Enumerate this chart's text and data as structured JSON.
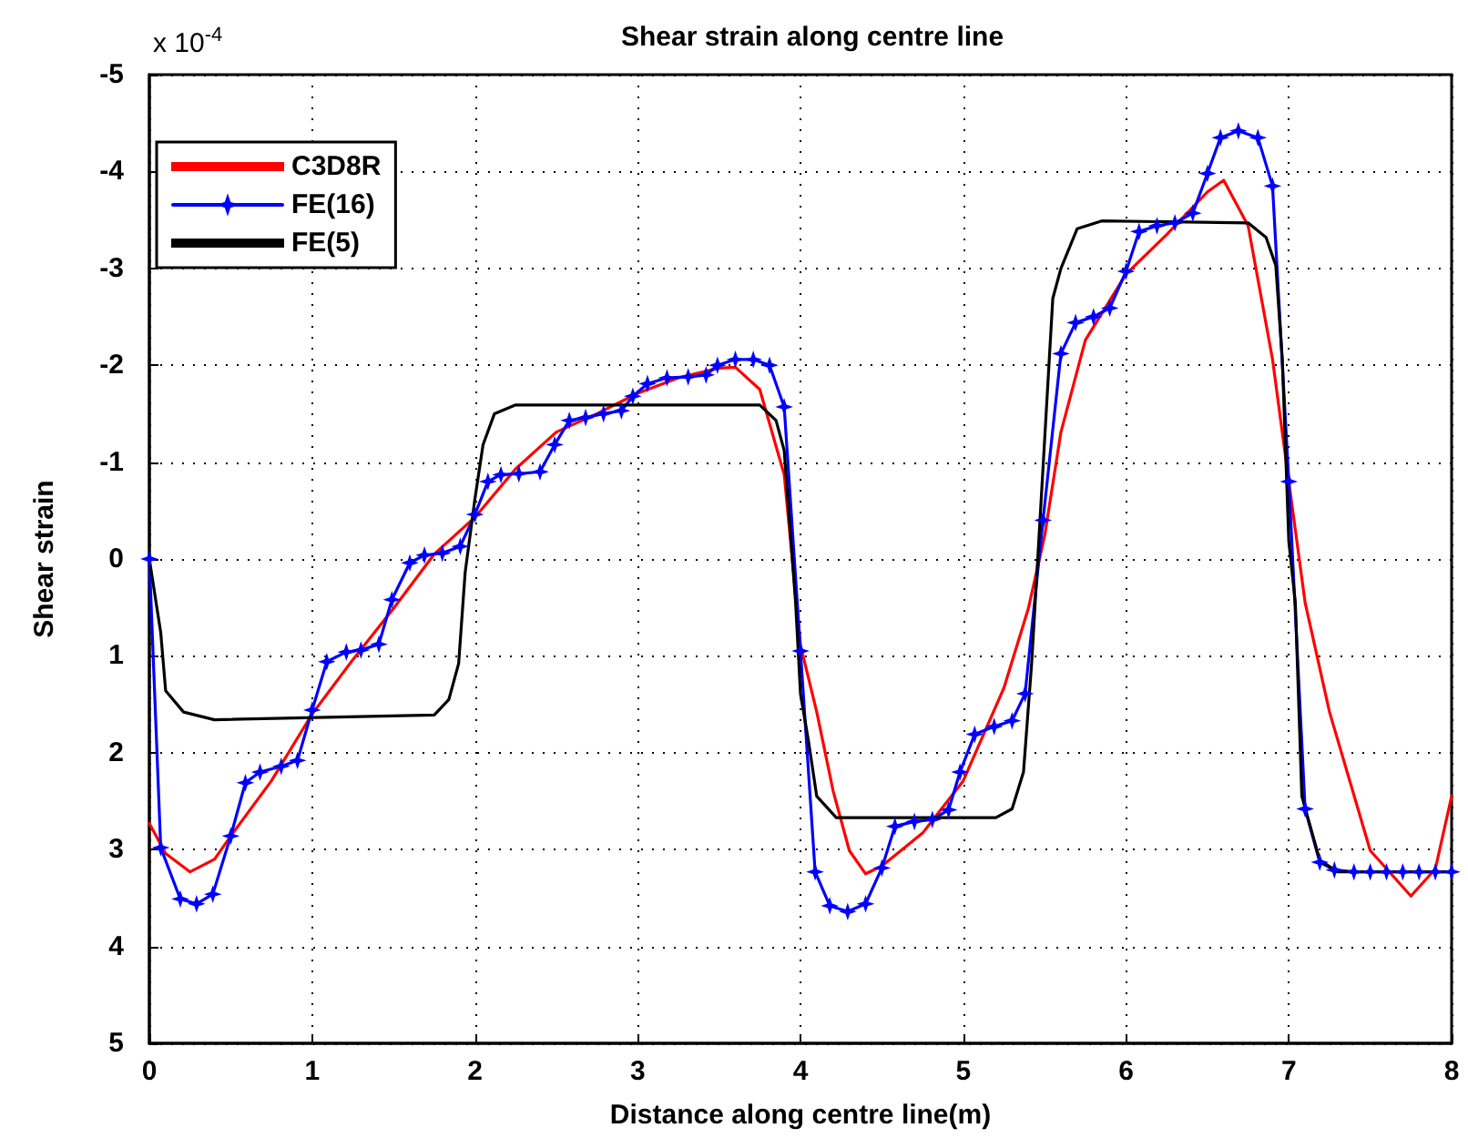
{
  "chart_data": {
    "type": "line",
    "title": "Shear strain along centre line",
    "xlabel": "Distance along centre line(m)",
    "ylabel": "Shear strain",
    "annotations": [
      "x 10$^{-4}$"
    ],
    "xlim": [
      0,
      8
    ],
    "xticks": [
      0,
      1,
      2,
      3,
      4,
      5,
      6,
      7,
      8
    ],
    "ylim": [
      5,
      -5
    ],
    "yticks": [
      -5,
      -4,
      -3,
      -2,
      -1,
      0,
      1,
      2,
      3,
      4,
      5
    ],
    "grid": true,
    "legend": "top left",
    "series": [
      {
        "name": "C3D8R",
        "color": "#ff0000",
        "marker": "none",
        "x": [
          0,
          0.1,
          0.25,
          0.4,
          0.5,
          0.75,
          1,
          1.25,
          1.5,
          1.75,
          2,
          2.25,
          2.5,
          2.75,
          3,
          3.25,
          3.5,
          3.6,
          3.75,
          3.9,
          4,
          4.1,
          4.2,
          4.3,
          4.4,
          4.5,
          4.75,
          5,
          5.25,
          5.4,
          5.5,
          5.6,
          5.75,
          6,
          6.25,
          6.5,
          6.6,
          6.75,
          6.9,
          7,
          7.1,
          7.25,
          7.5,
          7.75,
          7.9,
          8
        ],
        "values": [
          2.73,
          3.04,
          3.23,
          3.1,
          2.86,
          2.29,
          1.6,
          1.04,
          0.51,
          -0.05,
          -0.43,
          -0.93,
          -1.31,
          -1.5,
          -1.71,
          -1.87,
          -1.97,
          -1.98,
          -1.75,
          -0.87,
          0.89,
          1.58,
          2.39,
          3.01,
          3.25,
          3.17,
          2.83,
          2.29,
          1.33,
          0.51,
          -0.24,
          -1.31,
          -2.26,
          -2.94,
          -3.35,
          -3.79,
          -3.91,
          -3.44,
          -2.06,
          -0.8,
          0.45,
          1.58,
          3.01,
          3.48,
          3.2,
          2.45
        ]
      },
      {
        "name": "FE(16)",
        "color": "#0000ff",
        "marker": "star",
        "x": [
          0,
          0.07,
          0.19,
          0.29,
          0.39,
          0.5,
          0.59,
          0.68,
          0.81,
          0.91,
          1.0,
          1.09,
          1.21,
          1.3,
          1.41,
          1.49,
          1.6,
          1.69,
          1.8,
          1.91,
          2.0,
          2.08,
          2.16,
          2.27,
          2.4,
          2.49,
          2.58,
          2.68,
          2.79,
          2.9,
          2.97,
          3.06,
          3.18,
          3.31,
          3.42,
          3.49,
          3.6,
          3.71,
          3.81,
          3.9,
          4.0,
          4.09,
          4.18,
          4.29,
          4.4,
          4.5,
          4.58,
          4.7,
          4.81,
          4.91,
          4.98,
          5.07,
          5.19,
          5.3,
          5.38,
          5.49,
          5.6,
          5.69,
          5.8,
          5.9,
          6.0,
          6.08,
          6.19,
          6.3,
          6.41,
          6.5,
          6.58,
          6.69,
          6.81,
          6.9,
          7.0,
          7.1,
          7.19,
          7.28,
          7.4,
          7.5,
          7.6,
          7.7,
          7.8,
          7.9,
          8.0
        ],
        "values": [
          0,
          2.98,
          3.51,
          3.56,
          3.46,
          2.86,
          2.31,
          2.2,
          2.14,
          2.08,
          1.56,
          1.06,
          0.96,
          0.94,
          0.88,
          0.42,
          0.04,
          -0.04,
          -0.06,
          -0.13,
          -0.46,
          -0.8,
          -0.87,
          -0.88,
          -0.9,
          -1.18,
          -1.43,
          -1.46,
          -1.5,
          -1.53,
          -1.68,
          -1.81,
          -1.87,
          -1.88,
          -1.9,
          -2.0,
          -2.06,
          -2.06,
          -2.0,
          -1.57,
          0.95,
          3.23,
          3.58,
          3.64,
          3.56,
          3.19,
          2.76,
          2.71,
          2.69,
          2.59,
          2.2,
          1.81,
          1.73,
          1.67,
          1.39,
          -0.4,
          -2.12,
          -2.44,
          -2.5,
          -2.59,
          -2.97,
          -3.38,
          -3.44,
          -3.47,
          -3.57,
          -3.98,
          -4.35,
          -4.42,
          -4.35,
          -3.85,
          -0.8,
          2.58,
          3.13,
          3.21,
          3.23,
          3.23,
          3.23,
          3.23,
          3.23,
          3.23,
          3.23
        ]
      },
      {
        "name": "FE(5)",
        "color": "#000000",
        "marker": "none",
        "x": [
          0,
          0.07,
          0.1,
          0.21,
          0.4,
          1.75,
          1.84,
          1.9,
          1.94,
          2.0,
          2.05,
          2.12,
          2.25,
          3.75,
          3.85,
          3.9,
          3.97,
          4.0,
          4.05,
          4.1,
          4.22,
          5.2,
          5.3,
          5.37,
          5.42,
          5.47,
          5.55,
          5.6,
          5.7,
          5.85,
          6.75,
          6.86,
          6.92,
          6.96,
          7.0,
          7.04,
          7.08,
          7.19,
          7.3,
          8
        ],
        "values": [
          0,
          0.76,
          1.36,
          1.58,
          1.66,
          1.61,
          1.45,
          1.08,
          0.14,
          -0.62,
          -1.18,
          -1.5,
          -1.59,
          -1.59,
          -1.43,
          -1.12,
          0.45,
          1.39,
          1.89,
          2.45,
          2.67,
          2.67,
          2.58,
          2.2,
          1.08,
          -0.36,
          -2.69,
          -3.0,
          -3.41,
          -3.49,
          -3.47,
          -3.32,
          -3.03,
          -2.06,
          -0.18,
          0.45,
          2.45,
          3.11,
          3.23,
          3.23
        ]
      }
    ]
  }
}
